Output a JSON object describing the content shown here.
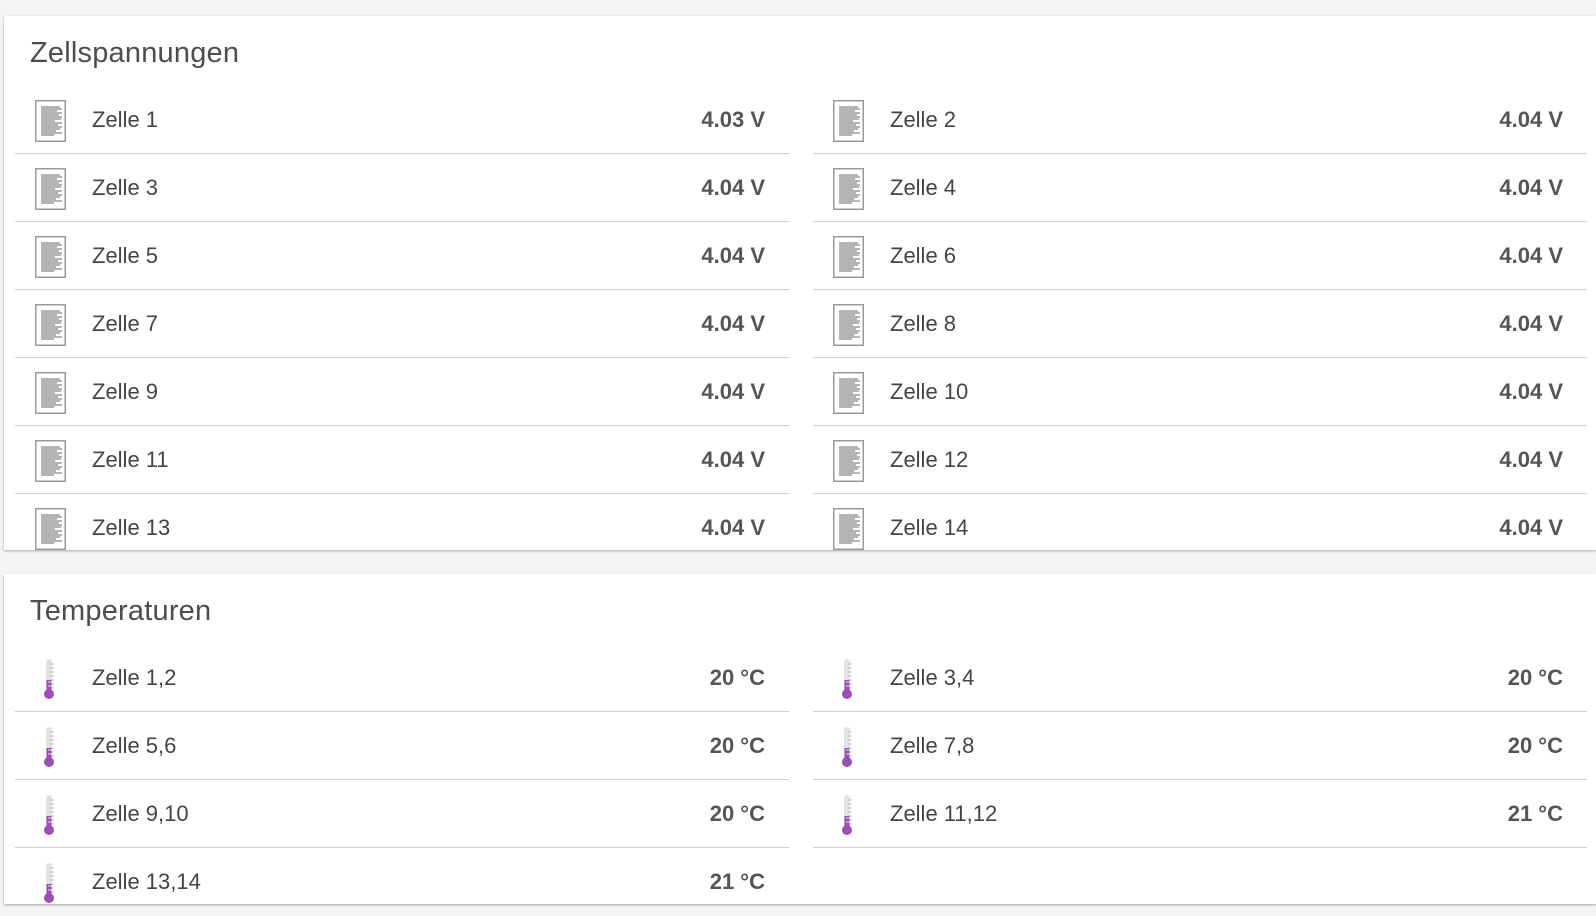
{
  "voltages": {
    "title": "Zellspannungen",
    "icon": "document-text-icon",
    "cells": [
      {
        "label": "Zelle 1",
        "value": "4.03 V"
      },
      {
        "label": "Zelle 2",
        "value": "4.04 V"
      },
      {
        "label": "Zelle 3",
        "value": "4.04 V"
      },
      {
        "label": "Zelle 4",
        "value": "4.04 V"
      },
      {
        "label": "Zelle 5",
        "value": "4.04 V"
      },
      {
        "label": "Zelle 6",
        "value": "4.04 V"
      },
      {
        "label": "Zelle 7",
        "value": "4.04 V"
      },
      {
        "label": "Zelle 8",
        "value": "4.04 V"
      },
      {
        "label": "Zelle 9",
        "value": "4.04 V"
      },
      {
        "label": "Zelle 10",
        "value": "4.04 V"
      },
      {
        "label": "Zelle 11",
        "value": "4.04 V"
      },
      {
        "label": "Zelle 12",
        "value": "4.04 V"
      },
      {
        "label": "Zelle 13",
        "value": "4.04 V"
      },
      {
        "label": "Zelle 14",
        "value": "4.04 V"
      }
    ]
  },
  "temperatures": {
    "title": "Temperaturen",
    "icon": "thermometer-icon",
    "icon_color": "#9b4fb5",
    "sensors": [
      {
        "label": "Zelle 1,2",
        "value": "20 °C"
      },
      {
        "label": "Zelle 3,4",
        "value": "20 °C"
      },
      {
        "label": "Zelle 5,6",
        "value": "20 °C"
      },
      {
        "label": "Zelle 7,8",
        "value": "20 °C"
      },
      {
        "label": "Zelle 9,10",
        "value": "20 °C"
      },
      {
        "label": "Zelle 11,12",
        "value": "21 °C"
      },
      {
        "label": "Zelle 13,14",
        "value": "21 °C"
      }
    ]
  },
  "colors": {
    "background": "#f4f4f4",
    "card": "#ffffff",
    "divider": "#cfcfcf",
    "text": "#444444"
  }
}
